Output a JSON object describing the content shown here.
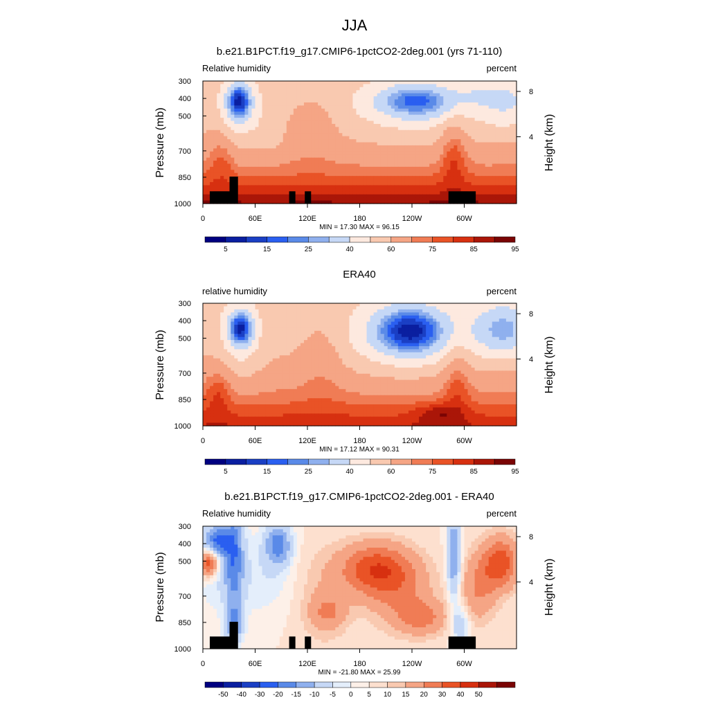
{
  "figure": {
    "title": "JJA"
  },
  "colors": {
    "rh_scale": [
      "#000080",
      "#0a1fa0",
      "#1a3fc4",
      "#2a5ff0",
      "#5a8ae8",
      "#8fb0ee",
      "#c6d8f6",
      "#fde9df",
      "#f9c9b0",
      "#f5a585",
      "#f07c55",
      "#e95326",
      "#d73010",
      "#aa1608",
      "#7a0404"
    ],
    "diff_scale": [
      "#000080",
      "#0a1fa0",
      "#1a3fc4",
      "#2a5ff0",
      "#5a8ae8",
      "#8fb0ee",
      "#c6d8f6",
      "#e4eefb",
      "#fdf0e8",
      "#fde0cf",
      "#f9c9b0",
      "#f5a585",
      "#f07c55",
      "#e95326",
      "#d73010",
      "#aa1608",
      "#7a0404"
    ],
    "topography": "#000000"
  },
  "chart_data": [
    {
      "type": "contour",
      "title": "b.e21.B1PCT.f19_g17.CMIP6-1pctCO2-2deg.001 (yrs 71-110)",
      "left_label": "Relative humidity",
      "right_label": "percent",
      "ylabel": "Pressure (mb)",
      "y2label": "Height (km)",
      "xticks": [
        "0",
        "60E",
        "120E",
        "180",
        "120W",
        "60W"
      ],
      "yticks": [
        "300",
        "400",
        "500",
        "700",
        "850",
        "1000"
      ],
      "y2ticks": [
        "8",
        "4"
      ],
      "ylim": [
        1000,
        300
      ],
      "stats": "MIN =  17.30  MAX =  96.15",
      "min": 17.3,
      "max": 96.15,
      "colorbar_labels": [
        "5",
        "15",
        "25",
        "40",
        "60",
        "75",
        "85",
        "95"
      ],
      "topography": true
    },
    {
      "type": "contour",
      "title": "ERA40",
      "left_label": "relative humidity",
      "right_label": "percent",
      "ylabel": "Pressure (mb)",
      "y2label": "Height (km)",
      "xticks": [
        "0",
        "60E",
        "120E",
        "180",
        "120W",
        "60W"
      ],
      "yticks": [
        "300",
        "400",
        "500",
        "700",
        "850",
        "1000"
      ],
      "y2ticks": [
        "8",
        "4"
      ],
      "ylim": [
        1000,
        300
      ],
      "stats": "MIN =  17.12  MAX =  90.31",
      "min": 17.12,
      "max": 90.31,
      "colorbar_labels": [
        "5",
        "15",
        "25",
        "40",
        "60",
        "75",
        "85",
        "95"
      ],
      "topography": false
    },
    {
      "type": "contour",
      "title": "b.e21.B1PCT.f19_g17.CMIP6-1pctCO2-2deg.001 - ERA40",
      "left_label": "Relative humidity",
      "right_label": "percent",
      "ylabel": "Pressure (mb)",
      "y2label": "Height (km)",
      "xticks": [
        "0",
        "60E",
        "120E",
        "180",
        "120W",
        "60W"
      ],
      "yticks": [
        "300",
        "400",
        "500",
        "700",
        "850",
        "1000"
      ],
      "y2ticks": [
        "8",
        "4"
      ],
      "ylim": [
        1000,
        300
      ],
      "stats": "MIN = -21.80  MAX =  25.99",
      "min": -21.8,
      "max": 25.99,
      "colorbar_labels": [
        "-50",
        "-40",
        "-30",
        "-20",
        "-15",
        "-10",
        "-5",
        "0",
        "5",
        "10",
        "15",
        "20",
        "30",
        "40",
        "50"
      ],
      "topography": true
    }
  ]
}
